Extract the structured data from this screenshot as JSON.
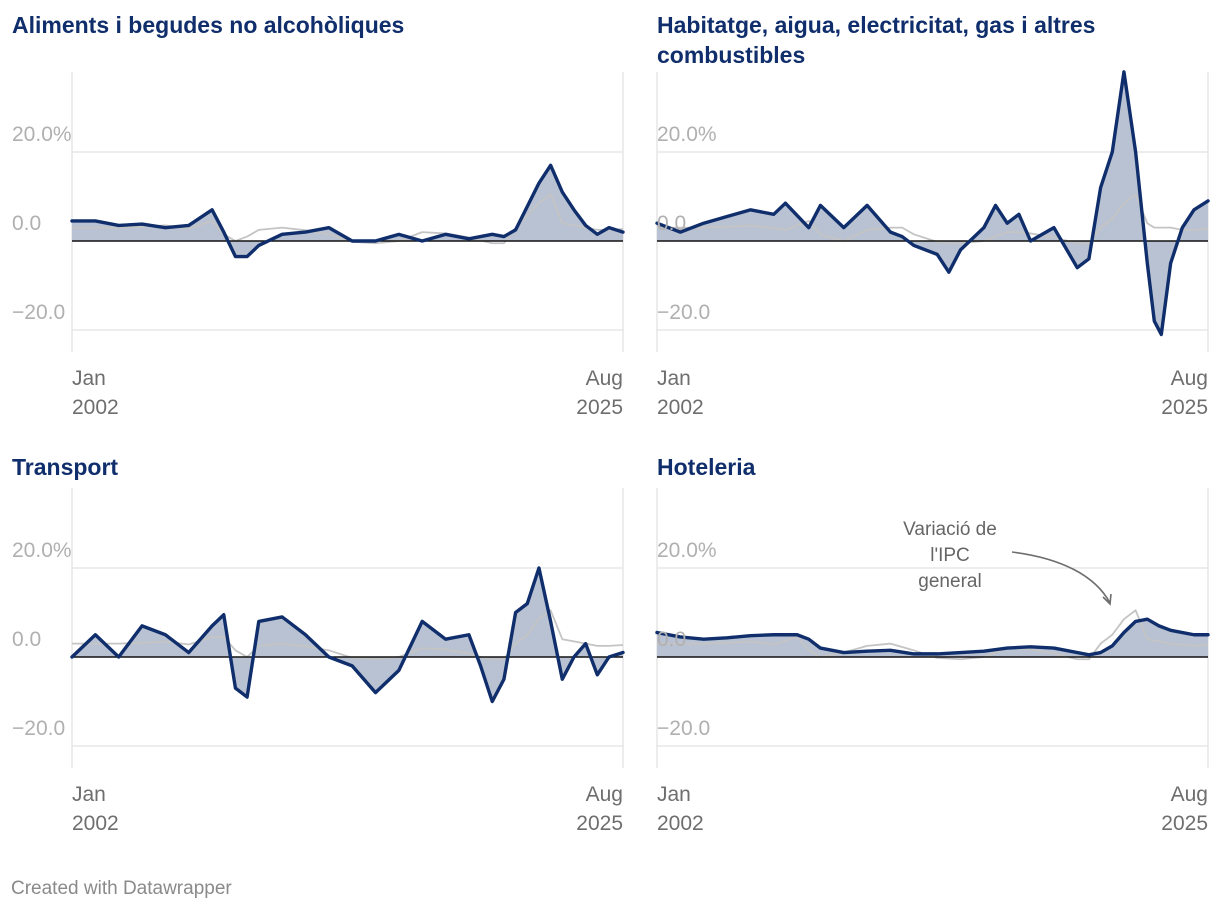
{
  "footer": "Created with Datawrapper",
  "annotation": {
    "lines": [
      "Variació de",
      "l'IPC",
      "general"
    ]
  },
  "colors": {
    "series": "#0f2e6b",
    "fill": "#b8c2d3",
    "reference": "#c4c4c4",
    "grid": "#e2e2e2",
    "title": "#0f2e6b"
  },
  "chart_data": [
    {
      "type": "area",
      "title": "Aliments i begudes no alcohòliques",
      "x_start": "Jan 2002",
      "x_end": "Aug 2025",
      "x_tick_labels": [
        {
          "month": "Jan",
          "year": "2002"
        },
        {
          "month": "Aug",
          "year": "2025"
        }
      ],
      "y_tick_labels": [
        "20.0%",
        "0.0",
        "−20.0"
      ],
      "ylim": [
        -25,
        40
      ],
      "zero_line": true,
      "grid": true,
      "x": [
        2002.0,
        2003.0,
        2004.0,
        2005.0,
        2006.0,
        2007.0,
        2008.0,
        2008.5,
        2009.0,
        2009.5,
        2010.0,
        2011.0,
        2012.0,
        2013.0,
        2014.0,
        2015.0,
        2016.0,
        2017.0,
        2018.0,
        2019.0,
        2020.0,
        2020.5,
        2021.0,
        2022.0,
        2022.5,
        2023.0,
        2023.5,
        2024.0,
        2024.5,
        2025.0,
        2025.6
      ],
      "series": [
        {
          "name": "",
          "values": [
            4.5,
            4.5,
            3.5,
            3.8,
            3.0,
            3.5,
            7.0,
            2.0,
            -3.5,
            -3.5,
            -1.0,
            1.5,
            2.0,
            3.0,
            0.0,
            0.0,
            1.5,
            0.0,
            1.5,
            0.5,
            1.5,
            1.0,
            2.5,
            13.0,
            17.0,
            11.0,
            7.0,
            3.5,
            1.5,
            3.0,
            2.0
          ]
        },
        {
          "name": "Variació de l'IPC general",
          "values": [
            3.0,
            3.0,
            3.0,
            3.2,
            3.5,
            2.8,
            4.5,
            1.5,
            0.0,
            1.0,
            2.5,
            3.0,
            2.4,
            1.5,
            -0.2,
            -0.5,
            0.0,
            2.0,
            1.7,
            0.8,
            -0.5,
            -0.5,
            3.0,
            8.5,
            10.5,
            4.0,
            3.5,
            3.0,
            2.5,
            2.5,
            2.7
          ]
        }
      ]
    },
    {
      "type": "area",
      "title": "Habitatge, aigua, electricitat, gas i altres combustibles",
      "x_start": "Jan 2002",
      "x_end": "Aug 2025",
      "x_tick_labels": [
        {
          "month": "Jan",
          "year": "2002"
        },
        {
          "month": "Aug",
          "year": "2025"
        }
      ],
      "y_tick_labels": [
        "20.0%",
        "0.0",
        "−20.0"
      ],
      "ylim": [
        -25,
        40
      ],
      "zero_line": true,
      "grid": true,
      "x": [
        2002.0,
        2003.0,
        2004.0,
        2005.0,
        2006.0,
        2007.0,
        2007.5,
        2008.5,
        2009.0,
        2010.0,
        2011.0,
        2012.0,
        2012.5,
        2013.0,
        2014.0,
        2014.5,
        2015.0,
        2016.0,
        2016.5,
        2017.0,
        2017.5,
        2018.0,
        2019.0,
        2020.0,
        2020.5,
        2021.0,
        2021.5,
        2022.0,
        2022.5,
        2023.0,
        2023.3,
        2023.6,
        2024.0,
        2024.5,
        2025.0,
        2025.6
      ],
      "series": [
        {
          "name": "",
          "values": [
            4.0,
            2.0,
            4.0,
            5.5,
            7.0,
            6.0,
            8.5,
            3.0,
            8.0,
            3.0,
            8.0,
            2.0,
            1.0,
            -1.0,
            -3.0,
            -7.0,
            -2.0,
            3.0,
            8.0,
            4.0,
            6.0,
            0.0,
            3.0,
            -6.0,
            -4.0,
            12.0,
            20.0,
            38.0,
            20.0,
            -5.0,
            -18.0,
            -21.0,
            -5.0,
            3.0,
            7.0,
            9.0
          ]
        },
        {
          "name": "Variació de l'IPC general",
          "values": [
            3.0,
            3.0,
            3.0,
            3.2,
            3.5,
            2.8,
            2.5,
            4.5,
            1.5,
            0.0,
            2.5,
            3.0,
            3.0,
            1.5,
            -0.2,
            -0.5,
            -0.5,
            0.0,
            1.0,
            2.0,
            2.0,
            1.7,
            0.8,
            -0.5,
            -0.5,
            3.0,
            5.0,
            8.5,
            10.5,
            4.0,
            3.0,
            3.0,
            3.0,
            2.5,
            2.5,
            2.7
          ]
        }
      ]
    },
    {
      "type": "area",
      "title": "Transport",
      "x_start": "Jan 2002",
      "x_end": "Aug 2025",
      "x_tick_labels": [
        {
          "month": "Jan",
          "year": "2002"
        },
        {
          "month": "Aug",
          "year": "2025"
        }
      ],
      "y_tick_labels": [
        "20.0%",
        "0.0",
        "−20.0"
      ],
      "ylim": [
        -25,
        40
      ],
      "zero_line": true,
      "grid": true,
      "x": [
        2002.0,
        2003.0,
        2004.0,
        2005.0,
        2006.0,
        2007.0,
        2008.0,
        2008.5,
        2009.0,
        2009.5,
        2010.0,
        2011.0,
        2012.0,
        2013.0,
        2014.0,
        2015.0,
        2016.0,
        2017.0,
        2018.0,
        2019.0,
        2019.5,
        2020.0,
        2020.5,
        2021.0,
        2021.5,
        2022.0,
        2022.5,
        2023.0,
        2023.5,
        2024.0,
        2024.5,
        2025.0,
        2025.6
      ],
      "series": [
        {
          "name": "",
          "values": [
            0.0,
            5.0,
            0.0,
            7.0,
            5.0,
            1.0,
            7.0,
            9.5,
            -7.0,
            -9.0,
            8.0,
            9.0,
            5.0,
            0.0,
            -2.0,
            -8.0,
            -3.0,
            8.0,
            4.0,
            5.0,
            -2.0,
            -10.0,
            -5.0,
            10.0,
            12.0,
            20.0,
            8.0,
            -5.0,
            0.0,
            3.0,
            -4.0,
            0.0,
            1.0
          ]
        },
        {
          "name": "Variació de l'IPC general",
          "values": [
            3.0,
            3.0,
            3.0,
            3.2,
            3.5,
            2.8,
            4.5,
            4.5,
            1.5,
            0.0,
            2.5,
            3.0,
            2.4,
            1.5,
            -0.2,
            -0.5,
            0.0,
            2.0,
            1.7,
            0.8,
            0.0,
            -0.5,
            -0.5,
            3.0,
            5.0,
            8.5,
            10.5,
            4.0,
            3.5,
            3.0,
            2.5,
            2.5,
            2.7
          ]
        }
      ]
    },
    {
      "type": "area",
      "title": "Hoteleria",
      "x_start": "Jan 2002",
      "x_end": "Aug 2025",
      "x_tick_labels": [
        {
          "month": "Jan",
          "year": "2002"
        },
        {
          "month": "Aug",
          "year": "2025"
        }
      ],
      "y_tick_labels": [
        "20.0%",
        "0.0",
        "−20.0"
      ],
      "ylim": [
        -25,
        40
      ],
      "zero_line": true,
      "grid": true,
      "x": [
        2002.0,
        2003.0,
        2004.0,
        2005.0,
        2006.0,
        2007.0,
        2008.0,
        2008.5,
        2009.0,
        2010.0,
        2011.0,
        2012.0,
        2013.0,
        2014.0,
        2015.0,
        2016.0,
        2017.0,
        2018.0,
        2019.0,
        2020.0,
        2020.5,
        2021.0,
        2021.5,
        2022.0,
        2022.5,
        2023.0,
        2023.5,
        2024.0,
        2025.0,
        2025.6
      ],
      "series": [
        {
          "name": "",
          "values": [
            5.5,
            4.5,
            4.0,
            4.3,
            4.8,
            5.0,
            5.0,
            4.0,
            2.0,
            1.0,
            1.3,
            1.5,
            0.7,
            0.7,
            1.0,
            1.3,
            2.0,
            2.3,
            2.0,
            1.0,
            0.5,
            1.0,
            2.5,
            5.5,
            8.0,
            8.5,
            7.0,
            6.0,
            5.0,
            5.0
          ]
        },
        {
          "name": "Variació de l'IPC general",
          "values": [
            3.0,
            3.0,
            3.0,
            3.2,
            3.5,
            2.8,
            4.5,
            1.5,
            0.0,
            1.0,
            2.5,
            3.0,
            1.5,
            -0.2,
            -0.5,
            0.0,
            2.0,
            1.7,
            0.8,
            -0.5,
            -0.5,
            3.0,
            5.0,
            8.5,
            10.5,
            4.0,
            3.5,
            3.0,
            2.5,
            2.7
          ]
        }
      ]
    }
  ]
}
